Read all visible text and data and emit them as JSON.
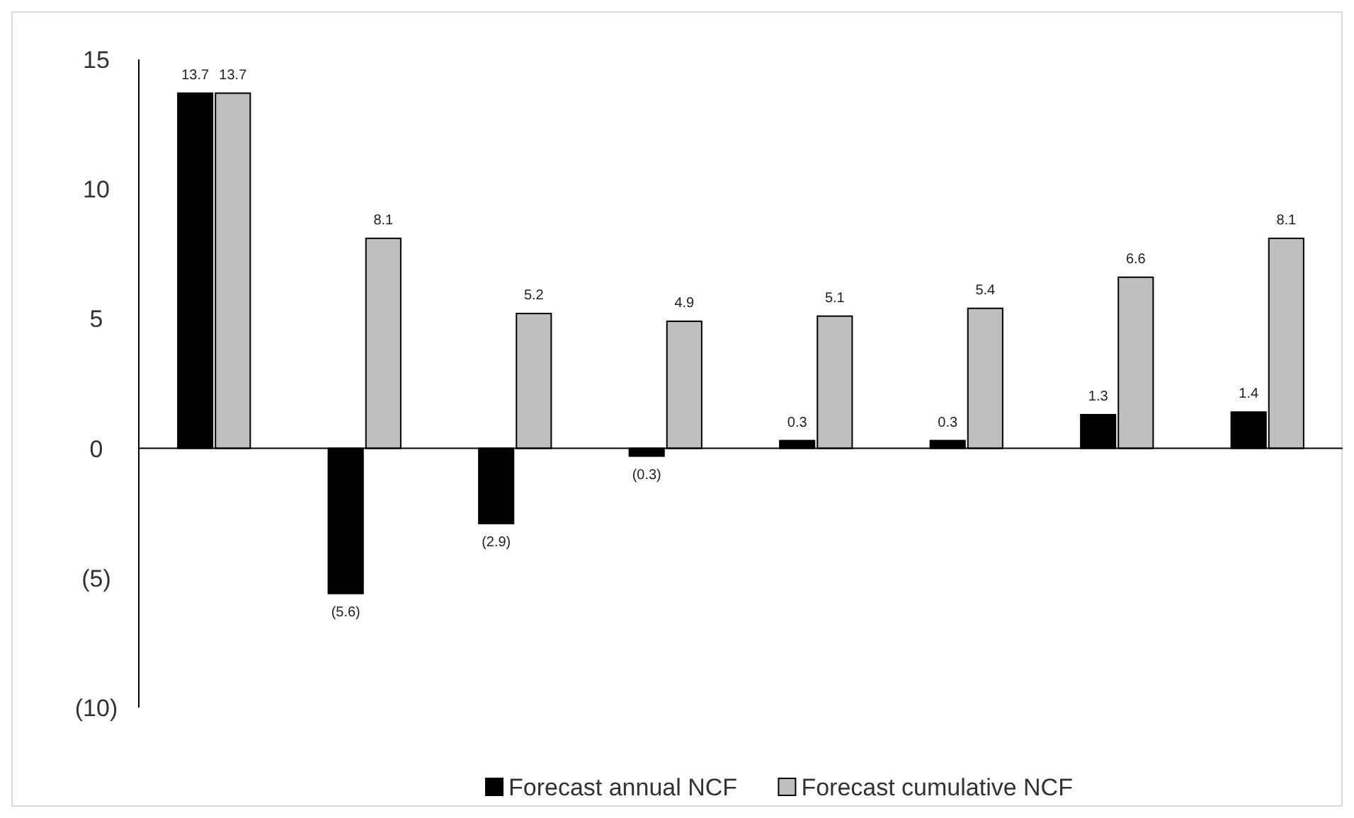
{
  "chart_data": {
    "type": "bar",
    "categories": [
      null,
      null,
      null,
      null,
      null,
      null,
      null,
      null
    ],
    "series": [
      {
        "name": "Forecast annual NCF",
        "color": "#000000",
        "values": [
          13.7,
          -5.6,
          -2.9,
          -0.3,
          0.3,
          0.3,
          1.3,
          1.4
        ],
        "value_labels": [
          "13.7",
          "(5.6)",
          "(2.9)",
          "(0.3)",
          "0.3",
          "0.3",
          "1.3",
          "1.4"
        ]
      },
      {
        "name": "Forecast cumulative NCF",
        "color": "#bfbfbf",
        "values": [
          13.7,
          8.1,
          5.2,
          4.9,
          5.1,
          5.4,
          6.6,
          8.1
        ],
        "value_labels": [
          "13.7",
          "8.1",
          "5.2",
          "4.9",
          "5.1",
          "5.4",
          "6.6",
          "8.1"
        ]
      }
    ],
    "ylim": [
      -10,
      15
    ],
    "yticks": [
      15,
      10,
      5,
      0,
      {
        "value": -5,
        "label": "(5)"
      },
      {
        "value": -10,
        "label": "(10)"
      }
    ],
    "legend": "bottom"
  }
}
